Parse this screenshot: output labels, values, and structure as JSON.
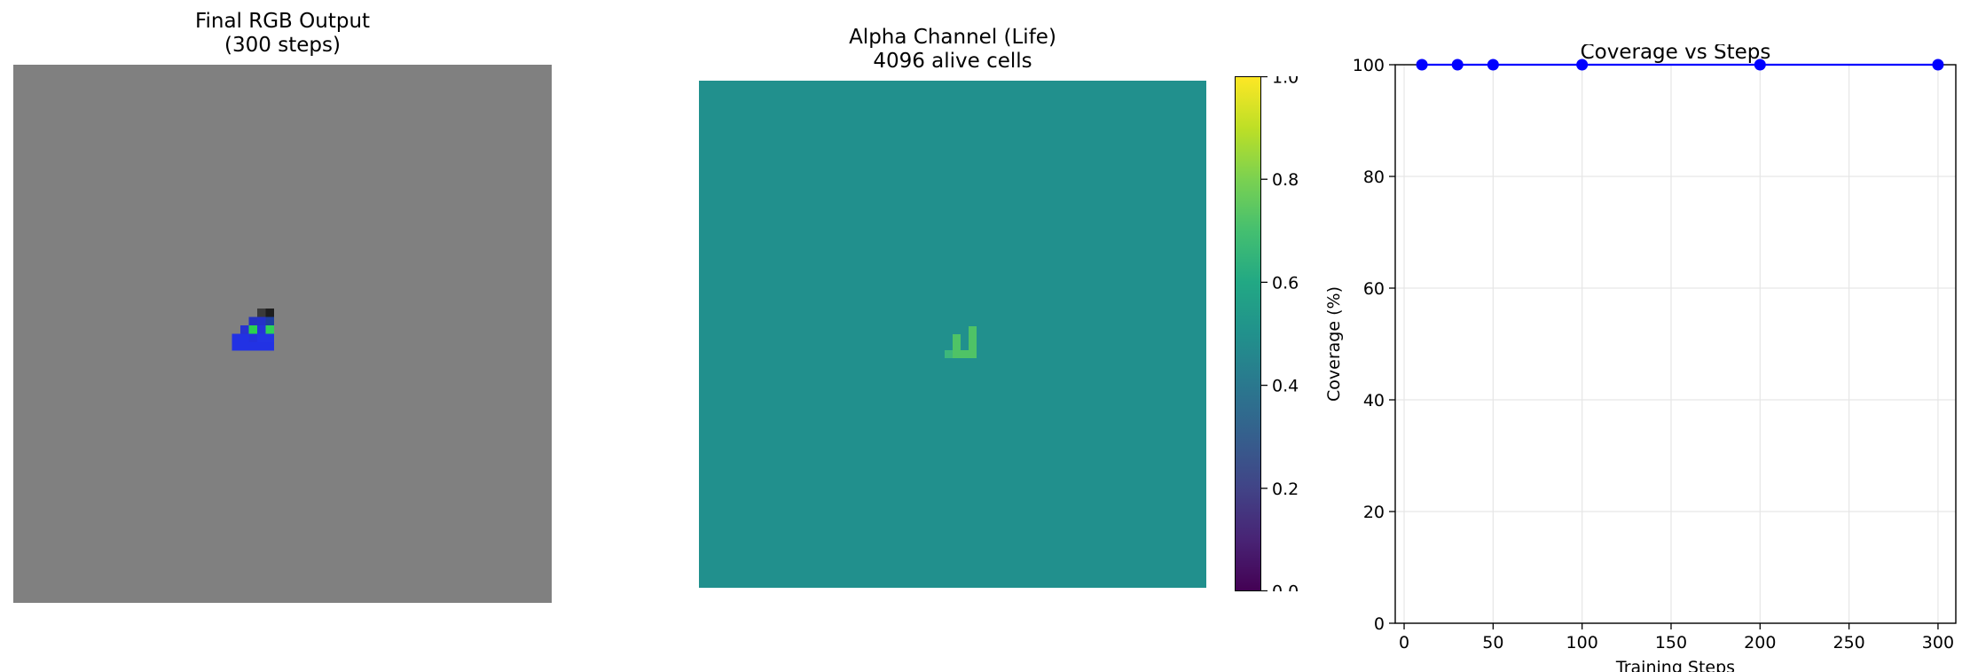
{
  "panels": {
    "rgb": {
      "title_line1": "Final RGB Output",
      "title_line2": "(300 steps)",
      "background_color": "#808080",
      "grid_size": 64,
      "pattern_cells": [
        {
          "col": 29,
          "row": 29,
          "color": "#3a3a3a"
        },
        {
          "col": 30,
          "row": 29,
          "color": "#1e1e1e"
        },
        {
          "col": 28,
          "row": 30,
          "color": "#2432c0"
        },
        {
          "col": 29,
          "row": 30,
          "color": "#2431c8"
        },
        {
          "col": 30,
          "row": 30,
          "color": "#1d3f9e"
        },
        {
          "col": 27,
          "row": 31,
          "color": "#2733d0"
        },
        {
          "col": 28,
          "row": 31,
          "color": "#2bd14f"
        },
        {
          "col": 29,
          "row": 31,
          "color": "#2433d8"
        },
        {
          "col": 30,
          "row": 31,
          "color": "#2fd158"
        },
        {
          "col": 27,
          "row": 32,
          "color": "#2232e4"
        },
        {
          "col": 28,
          "row": 32,
          "color": "#2331dc"
        },
        {
          "col": 29,
          "row": 32,
          "color": "#2334e4"
        },
        {
          "col": 30,
          "row": 32,
          "color": "#2334e4"
        },
        {
          "col": 26,
          "row": 32,
          "color": "#2232e4"
        },
        {
          "col": 26,
          "row": 33,
          "color": "#2232e4"
        },
        {
          "col": 27,
          "row": 33,
          "color": "#2232e4"
        },
        {
          "col": 28,
          "row": 33,
          "color": "#2232e4"
        },
        {
          "col": 29,
          "row": 33,
          "color": "#2232e4"
        },
        {
          "col": 30,
          "row": 33,
          "color": "#2232e4"
        }
      ]
    },
    "alpha": {
      "title_line1": "Alpha Channel (Life)",
      "title_line2": "4096 alive cells",
      "background_color": "#21908d",
      "grid_size": 64,
      "pattern_cells": [
        {
          "col": 34,
          "row": 31,
          "color": "#4fc366"
        },
        {
          "col": 32,
          "row": 32,
          "color": "#4fc366"
        },
        {
          "col": 34,
          "row": 32,
          "color": "#4fc366"
        },
        {
          "col": 32,
          "row": 33,
          "color": "#4fc366"
        },
        {
          "col": 34,
          "row": 33,
          "color": "#4fc366"
        },
        {
          "col": 31,
          "row": 34,
          "color": "#3db77b"
        },
        {
          "col": 32,
          "row": 34,
          "color": "#4fc366"
        },
        {
          "col": 33,
          "row": 34,
          "color": "#4fc366"
        },
        {
          "col": 34,
          "row": 34,
          "color": "#4fc366"
        }
      ],
      "colorbar": {
        "min": 0,
        "max": 1,
        "ticks": [
          "0.0",
          "0.2",
          "0.4",
          "0.6",
          "0.8",
          "1.0"
        ],
        "colormap": "viridis"
      }
    }
  },
  "chart_data": {
    "type": "line",
    "title": "Coverage vs Steps",
    "xlabel": "Training Steps",
    "ylabel": "Coverage (%)",
    "x": [
      10,
      30,
      50,
      100,
      200,
      300
    ],
    "series": [
      {
        "values": [
          100,
          100,
          100,
          100,
          100,
          100
        ],
        "color": "#0000ff"
      }
    ],
    "xlim": [
      -5,
      310
    ],
    "ylim": [
      0,
      100
    ],
    "xticks": [
      0,
      50,
      100,
      150,
      200,
      250,
      300
    ],
    "yticks": [
      0,
      20,
      40,
      60,
      80,
      100
    ],
    "grid": true,
    "marker": "circle"
  }
}
